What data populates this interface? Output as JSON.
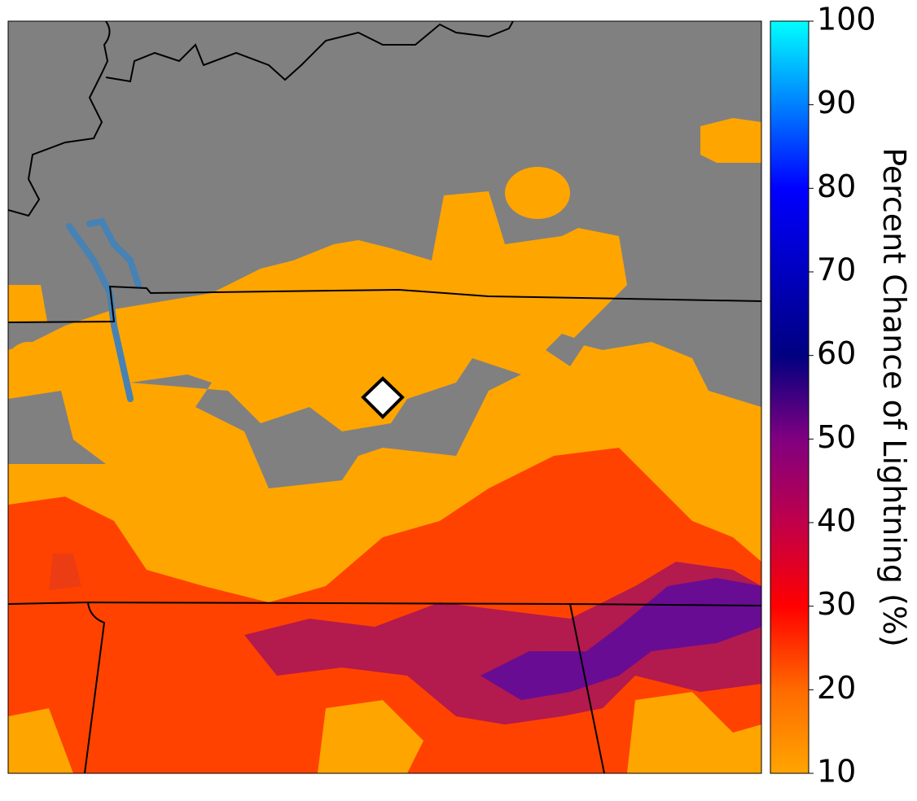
{
  "colorbar": {
    "label": "Percent Chance of Lightning (%)",
    "clim": [
      10,
      100
    ],
    "ticks": [
      10,
      20,
      30,
      40,
      50,
      60,
      70,
      80,
      90,
      100
    ],
    "colormap": [
      {
        "value": 10,
        "color": "#ffa500"
      },
      {
        "value": 20,
        "color": "#ff6a00"
      },
      {
        "value": 30,
        "color": "#ff0000"
      },
      {
        "value": 40,
        "color": "#c0004a"
      },
      {
        "value": 50,
        "color": "#800080"
      },
      {
        "value": 60,
        "color": "#000080"
      },
      {
        "value": 70,
        "color": "#0000c0"
      },
      {
        "value": 80,
        "color": "#0000ff"
      },
      {
        "value": 90,
        "color": "#0080ff"
      },
      {
        "value": 100,
        "color": "#00ffff"
      }
    ]
  }
}
